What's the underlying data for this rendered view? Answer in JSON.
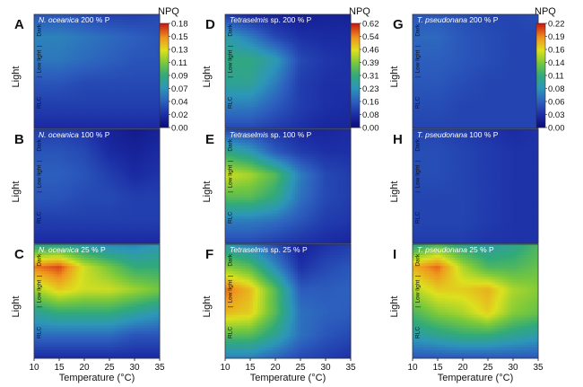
{
  "chart_data": {
    "type": "heatmap",
    "x_axis": {
      "label": "Temperature (°C)",
      "ticks": [
        "10",
        "15",
        "20",
        "25",
        "30",
        "35"
      ],
      "range": [
        10,
        35
      ]
    },
    "y_axis": {
      "label": "Light",
      "ticks": [
        "Dark",
        "Low light",
        "RLC"
      ]
    },
    "colorbars": [
      {
        "id": "N",
        "title": "NPQ",
        "ticks": [
          "0.18",
          "0.15",
          "0.13",
          "0.11",
          "0.09",
          "0.07",
          "0.04",
          "0.02",
          "0.00"
        ],
        "max": 0.18
      },
      {
        "id": "T",
        "title": "NPQ",
        "ticks": [
          "0.62",
          "0.54",
          "0.46",
          "0.39",
          "0.31",
          "0.23",
          "0.16",
          "0.08",
          "0.00"
        ],
        "max": 0.62
      },
      {
        "id": "P",
        "title": "NPQ",
        "ticks": [
          "0.22",
          "0.19",
          "0.16",
          "0.14",
          "0.11",
          "0.08",
          "0.06",
          "0.03",
          "0.00"
        ],
        "max": 0.22
      }
    ],
    "panels": [
      {
        "letter": "A",
        "species": "N. oceanica",
        "treatment": "200 % P",
        "column": 0,
        "row": 0,
        "grid": [
          [
            0.04,
            0.04,
            0.035,
            0.03,
            0.03,
            0.035
          ],
          [
            0.06,
            0.06,
            0.055,
            0.05,
            0.045,
            0.04
          ],
          [
            0.055,
            0.055,
            0.05,
            0.045,
            0.04,
            0.04
          ],
          [
            0.04,
            0.04,
            0.035,
            0.035,
            0.035,
            0.035
          ],
          [
            0.03,
            0.03,
            0.03,
            0.03,
            0.03,
            0.03
          ],
          [
            0.02,
            0.02,
            0.02,
            0.02,
            0.02,
            0.02
          ]
        ]
      },
      {
        "letter": "B",
        "species": "N. oceanica",
        "treatment": "100 % P",
        "column": 0,
        "row": 1,
        "grid": [
          [
            0.03,
            0.03,
            0.025,
            0.015,
            0.01,
            0.015
          ],
          [
            0.04,
            0.04,
            0.035,
            0.02,
            0.015,
            0.02
          ],
          [
            0.045,
            0.045,
            0.04,
            0.03,
            0.02,
            0.025
          ],
          [
            0.04,
            0.04,
            0.035,
            0.035,
            0.03,
            0.03
          ],
          [
            0.03,
            0.03,
            0.03,
            0.03,
            0.03,
            0.03
          ],
          [
            0.02,
            0.02,
            0.02,
            0.02,
            0.02,
            0.02
          ]
        ]
      },
      {
        "letter": "C",
        "species": "N. oceanica",
        "treatment": "25 % P",
        "column": 0,
        "row": 2,
        "grid": [
          [
            0.08,
            0.08,
            0.07,
            0.06,
            0.06,
            0.07
          ],
          [
            0.16,
            0.17,
            0.13,
            0.11,
            0.09,
            0.09
          ],
          [
            0.12,
            0.14,
            0.13,
            0.13,
            0.12,
            0.11
          ],
          [
            0.08,
            0.09,
            0.09,
            0.09,
            0.08,
            0.07
          ],
          [
            0.05,
            0.05,
            0.05,
            0.05,
            0.04,
            0.04
          ],
          [
            0.02,
            0.02,
            0.02,
            0.02,
            0.02,
            0.02
          ]
        ]
      },
      {
        "letter": "D",
        "species": "Tetraselmis",
        "species_suffix": " sp.",
        "treatment": "200 % P",
        "column": 1,
        "row": 0,
        "grid": [
          [
            0.1,
            0.06,
            0.05,
            0.04,
            0.05,
            0.05
          ],
          [
            0.26,
            0.2,
            0.12,
            0.08,
            0.07,
            0.07
          ],
          [
            0.3,
            0.3,
            0.25,
            0.12,
            0.09,
            0.08
          ],
          [
            0.28,
            0.28,
            0.2,
            0.1,
            0.08,
            0.08
          ],
          [
            0.2,
            0.2,
            0.15,
            0.1,
            0.08,
            0.07
          ],
          [
            0.12,
            0.12,
            0.1,
            0.08,
            0.06,
            0.06
          ]
        ]
      },
      {
        "letter": "E",
        "species": "Tetraselmis",
        "species_suffix": " sp.",
        "treatment": "100 % P",
        "column": 1,
        "row": 1,
        "grid": [
          [
            0.12,
            0.1,
            0.08,
            0.06,
            0.06,
            0.07
          ],
          [
            0.3,
            0.25,
            0.15,
            0.1,
            0.08,
            0.08
          ],
          [
            0.45,
            0.42,
            0.35,
            0.2,
            0.12,
            0.1
          ],
          [
            0.35,
            0.35,
            0.3,
            0.18,
            0.12,
            0.1
          ],
          [
            0.2,
            0.2,
            0.18,
            0.14,
            0.1,
            0.09
          ],
          [
            0.12,
            0.12,
            0.1,
            0.08,
            0.07,
            0.06
          ]
        ]
      },
      {
        "letter": "F",
        "species": "Tetraselmis",
        "species_suffix": " sp.",
        "treatment": "25 % P",
        "column": 1,
        "row": 2,
        "grid": [
          [
            0.25,
            0.2,
            0.12,
            0.05,
            0.08,
            0.1
          ],
          [
            0.4,
            0.35,
            0.22,
            0.08,
            0.12,
            0.14
          ],
          [
            0.56,
            0.5,
            0.35,
            0.15,
            0.15,
            0.16
          ],
          [
            0.5,
            0.48,
            0.35,
            0.18,
            0.16,
            0.15
          ],
          [
            0.35,
            0.35,
            0.28,
            0.18,
            0.14,
            0.12
          ],
          [
            0.2,
            0.2,
            0.16,
            0.12,
            0.1,
            0.08
          ]
        ]
      },
      {
        "letter": "G",
        "species": "T. pseudonana",
        "treatment": "200 % P",
        "column": 2,
        "row": 0,
        "grid": [
          [
            0.05,
            0.05,
            0.045,
            0.04,
            0.04,
            0.045
          ],
          [
            0.06,
            0.06,
            0.05,
            0.045,
            0.04,
            0.04
          ],
          [
            0.055,
            0.055,
            0.05,
            0.045,
            0.04,
            0.04
          ],
          [
            0.05,
            0.05,
            0.045,
            0.04,
            0.04,
            0.04
          ],
          [
            0.045,
            0.045,
            0.04,
            0.04,
            0.04,
            0.04
          ],
          [
            0.04,
            0.04,
            0.04,
            0.04,
            0.04,
            0.04
          ]
        ]
      },
      {
        "letter": "H",
        "species": "T. pseudonana",
        "treatment": "100 % P",
        "column": 2,
        "row": 1,
        "grid": [
          [
            0.04,
            0.04,
            0.035,
            0.03,
            0.025,
            0.03
          ],
          [
            0.045,
            0.045,
            0.04,
            0.035,
            0.03,
            0.03
          ],
          [
            0.045,
            0.045,
            0.04,
            0.035,
            0.03,
            0.03
          ],
          [
            0.04,
            0.04,
            0.04,
            0.035,
            0.03,
            0.03
          ],
          [
            0.04,
            0.04,
            0.04,
            0.035,
            0.03,
            0.03
          ],
          [
            0.035,
            0.035,
            0.035,
            0.03,
            0.03,
            0.03
          ]
        ]
      },
      {
        "letter": "I",
        "species": "T. pseudonana",
        "treatment": "25 % P",
        "column": 2,
        "row": 2,
        "grid": [
          [
            0.1,
            0.12,
            0.1,
            0.09,
            0.1,
            0.12
          ],
          [
            0.18,
            0.2,
            0.15,
            0.12,
            0.12,
            0.13
          ],
          [
            0.15,
            0.17,
            0.17,
            0.18,
            0.15,
            0.14
          ],
          [
            0.12,
            0.14,
            0.15,
            0.17,
            0.14,
            0.13
          ],
          [
            0.09,
            0.1,
            0.11,
            0.11,
            0.1,
            0.09
          ],
          [
            0.05,
            0.05,
            0.05,
            0.05,
            0.05,
            0.05
          ]
        ]
      }
    ]
  }
}
